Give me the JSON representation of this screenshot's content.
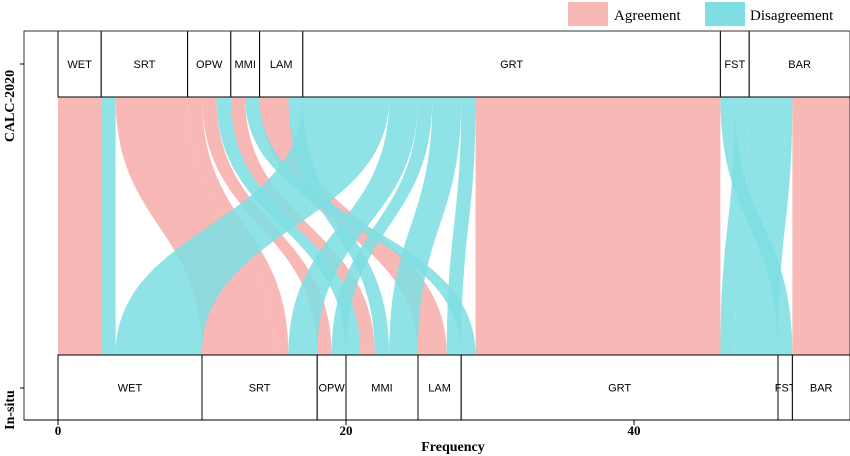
{
  "chart_data": {
    "type": "alluvial",
    "title": "",
    "xlabel": "Frequency",
    "ylabel_top": "CALC-2020",
    "ylabel_bottom": "In-situ",
    "xlim": [
      0,
      55
    ],
    "x_ticks": [
      0,
      20,
      40
    ],
    "legend": {
      "placement": "top-right",
      "entries": [
        {
          "name": "Agreement",
          "color": "#F8B8B6"
        },
        {
          "name": "Disagreement",
          "color": "#7FDEE3"
        }
      ]
    },
    "top_axis": {
      "name": "CALC-2020",
      "categories": [
        "WET",
        "SRT",
        "OPW",
        "MMI",
        "LAM",
        "GRT",
        "FST",
        "BAR"
      ],
      "totals": [
        3,
        6,
        3,
        2,
        3,
        29,
        2,
        7
      ]
    },
    "bottom_axis": {
      "name": "In-situ",
      "categories": [
        "WET",
        "SRT",
        "OPW",
        "MMI",
        "LAM",
        "GRT",
        "FST",
        "BAR"
      ],
      "totals": [
        10,
        8,
        2,
        5,
        3,
        22,
        1,
        4
      ]
    },
    "flows": [
      {
        "from": "WET",
        "to": "WET",
        "value": 3,
        "status": "Agreement"
      },
      {
        "from": "SRT",
        "to": "WET",
        "value": 1,
        "status": "Disagreement"
      },
      {
        "from": "SRT",
        "to": "SRT",
        "value": 5,
        "status": "Agreement"
      },
      {
        "from": "OPW",
        "to": "SRT",
        "value": 1,
        "status": "Agreement"
      },
      {
        "from": "OPW",
        "to": "OPW",
        "value": 1,
        "status": "Agreement"
      },
      {
        "from": "OPW",
        "to": "MMI",
        "value": 1,
        "status": "Disagreement"
      },
      {
        "from": "MMI",
        "to": "MMI",
        "value": 1,
        "status": "Agreement"
      },
      {
        "from": "MMI",
        "to": "GRT",
        "value": 0.5,
        "status": "Disagreement"
      },
      {
        "from": "MMI",
        "to": "GRT",
        "value": 0.5,
        "status": "Disagreement"
      },
      {
        "from": "LAM",
        "to": "LAM",
        "value": 2,
        "status": "Agreement"
      },
      {
        "from": "LAM",
        "to": "MMI",
        "value": 1,
        "status": "Disagreement"
      },
      {
        "from": "GRT",
        "to": "WET",
        "value": 6,
        "status": "Disagreement"
      },
      {
        "from": "GRT",
        "to": "SRT",
        "value": 2,
        "status": "Disagreement"
      },
      {
        "from": "GRT",
        "to": "OPW",
        "value": 1,
        "status": "Disagreement"
      },
      {
        "from": "GRT",
        "to": "MMI",
        "value": 2,
        "status": "Disagreement"
      },
      {
        "from": "GRT",
        "to": "LAM",
        "value": 1,
        "status": "Disagreement"
      },
      {
        "from": "GRT",
        "to": "GRT",
        "value": 17,
        "status": "Agreement"
      },
      {
        "from": "FST",
        "to": "FST",
        "value": 1,
        "status": "Disagreement"
      },
      {
        "from": "FST",
        "to": "GRT",
        "value": 1,
        "status": "Disagreement"
      },
      {
        "from": "BAR",
        "to": "GRT",
        "value": 3,
        "status": "Disagreement"
      },
      {
        "from": "BAR",
        "to": "BAR",
        "value": 4,
        "status": "Agreement"
      }
    ]
  }
}
